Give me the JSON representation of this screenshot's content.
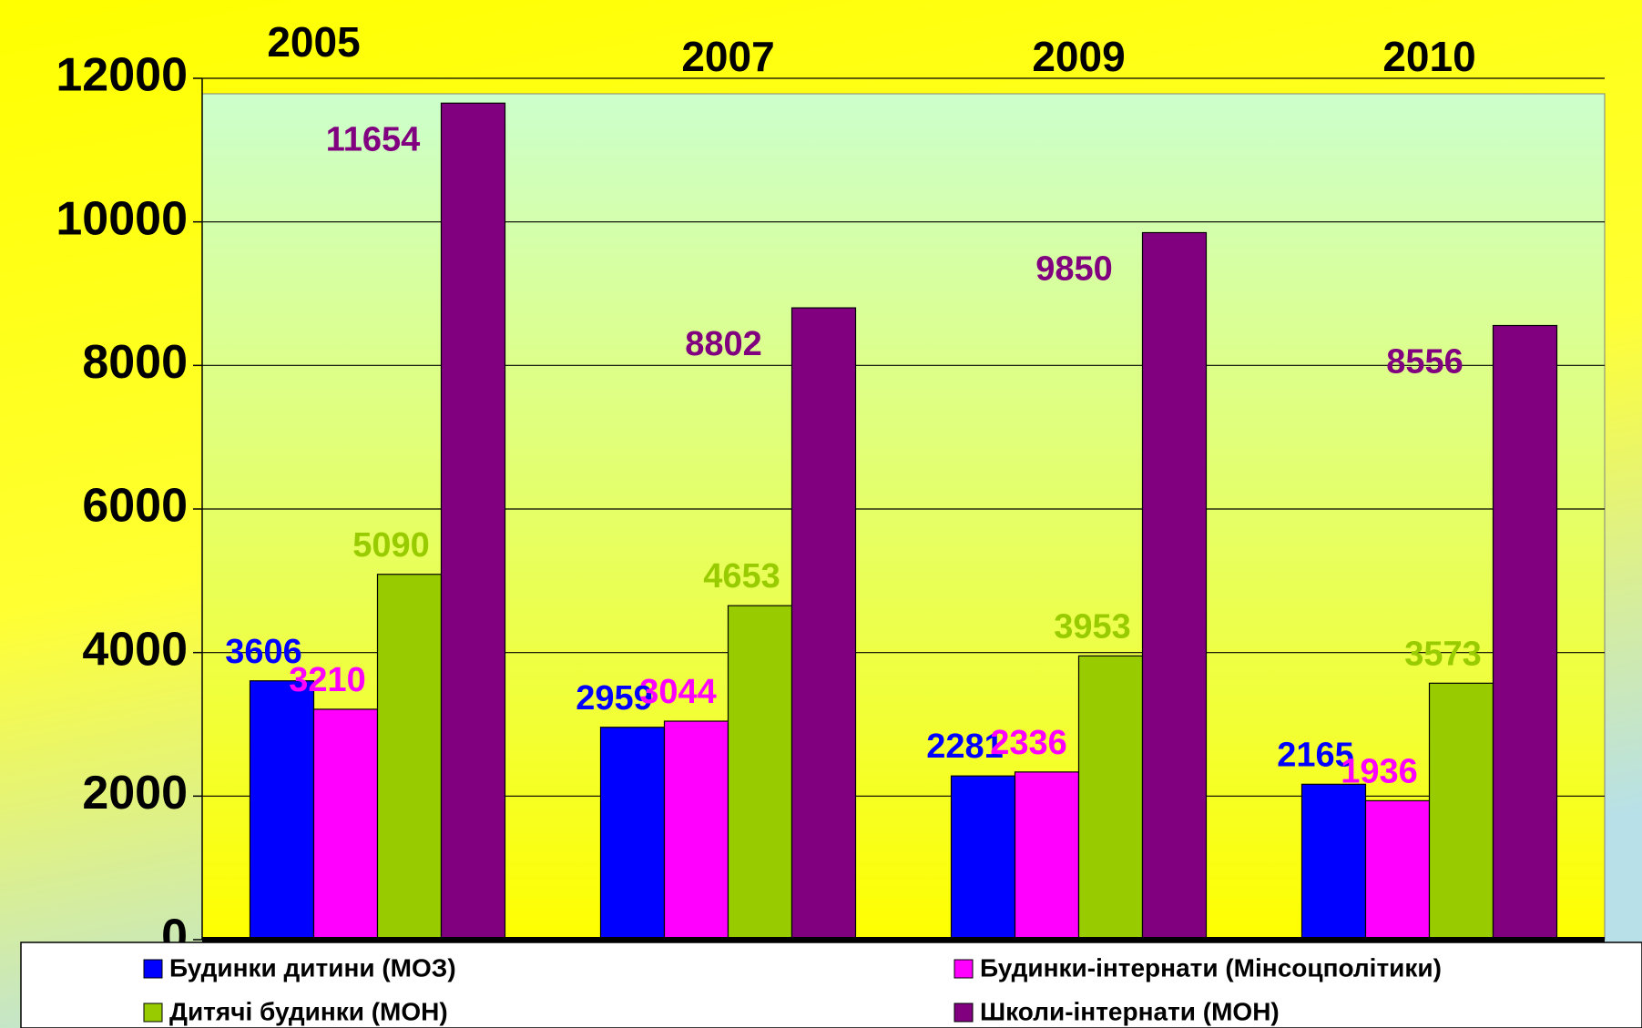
{
  "chart_data": {
    "type": "bar",
    "categories": [
      "2005",
      "2007",
      "2009",
      "2010"
    ],
    "series": [
      {
        "name": "Будинки дитини (МОЗ)",
        "color": "#0000ff",
        "values": [
          3606,
          2959,
          2281,
          2165
        ]
      },
      {
        "name": "Будинки-інтернати (Мінсоцполітики)",
        "color": "#ff00ff",
        "values": [
          3210,
          3044,
          2336,
          1936
        ]
      },
      {
        "name": "Дитячі будинки (МОН)",
        "color": "#99cc00",
        "values": [
          5090,
          4653,
          3953,
          3573
        ]
      },
      {
        "name": "Школи-інтернати (МОН)",
        "color": "#800080",
        "values": [
          11654,
          8802,
          9850,
          8556
        ]
      }
    ],
    "ylim": [
      0,
      12000
    ],
    "yticks": [
      0,
      2000,
      4000,
      6000,
      8000,
      10000,
      12000
    ],
    "grid": true,
    "legend": "bottom"
  }
}
